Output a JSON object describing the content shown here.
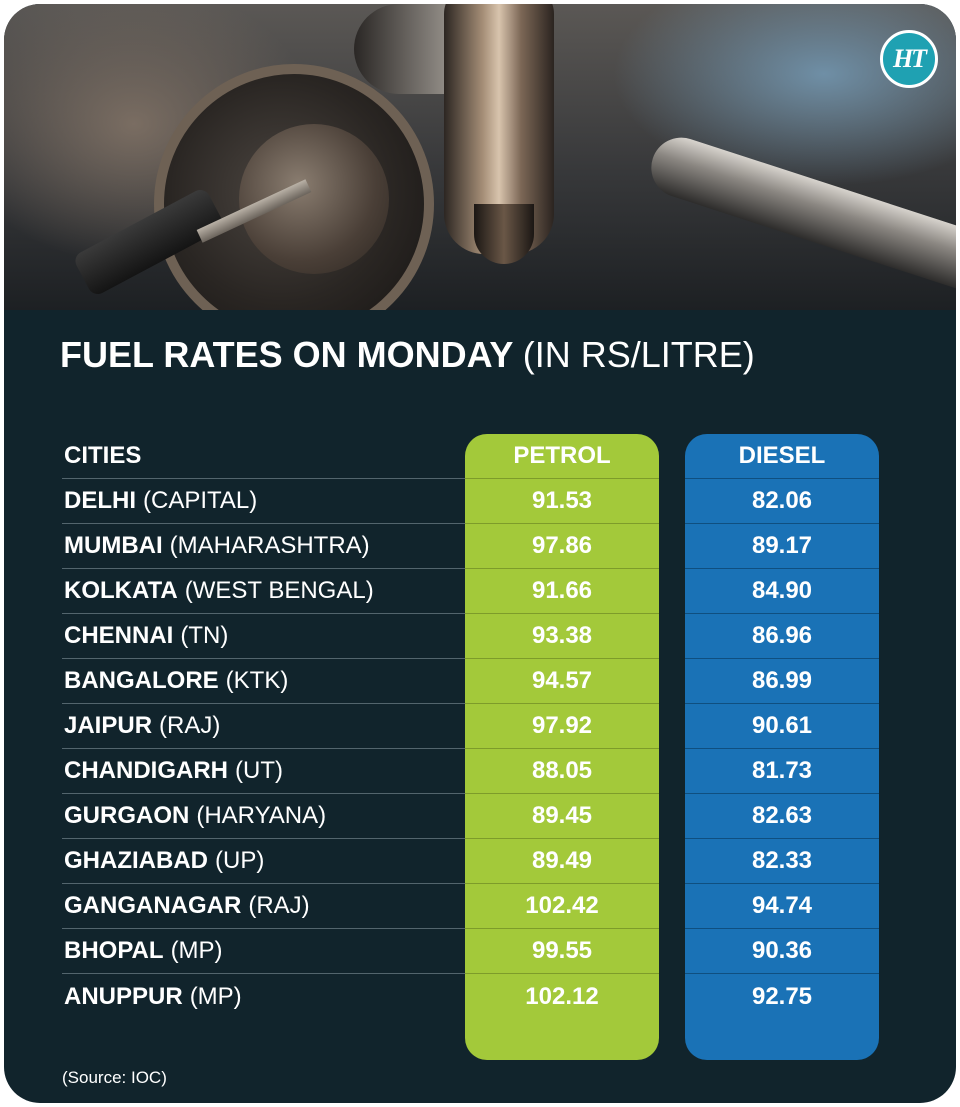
{
  "brand": {
    "logo_text": "HT"
  },
  "title": {
    "bold": "FUEL RATES ON MONDAY",
    "light": "(IN RS/LITRE)"
  },
  "table": {
    "headers": {
      "city": "CITIES",
      "petrol": "PETROL",
      "diesel": "DIESEL"
    },
    "rows": [
      {
        "city": "DELHI",
        "state": "(CAPITAL)",
        "petrol": "91.53",
        "diesel": "82.06"
      },
      {
        "city": "MUMBAI",
        "state": "(MAHARASHTRA)",
        "petrol": "97.86",
        "diesel": "89.17"
      },
      {
        "city": "KOLKATA",
        "state": "(WEST BENGAL)",
        "petrol": "91.66",
        "diesel": "84.90"
      },
      {
        "city": "CHENNAI",
        "state": "(TN)",
        "petrol": "93.38",
        "diesel": "86.96"
      },
      {
        "city": "BANGALORE",
        "state": "(KTK)",
        "petrol": "94.57",
        "diesel": "86.99"
      },
      {
        "city": "JAIPUR",
        "state": "(RAJ)",
        "petrol": "97.92",
        "diesel": "90.61"
      },
      {
        "city": "CHANDIGARH",
        "state": "(UT)",
        "petrol": "88.05",
        "diesel": "81.73"
      },
      {
        "city": "GURGAON",
        "state": "(HARYANA)",
        "petrol": "89.45",
        "diesel": "82.63"
      },
      {
        "city": "GHAZIABAD",
        "state": "(UP)",
        "petrol": "89.49",
        "diesel": "82.33"
      },
      {
        "city": "GANGANAGAR",
        "state": "(RAJ)",
        "petrol": "102.42",
        "diesel": "94.74"
      },
      {
        "city": "BHOPAL",
        "state": "(MP)",
        "petrol": "99.55",
        "diesel": "90.36"
      },
      {
        "city": "ANUPPUR",
        "state": "(MP)",
        "petrol": "102.12",
        "diesel": "92.75"
      }
    ]
  },
  "source": "(Source: IOC)",
  "colors": {
    "background": "#11242c",
    "petrol_column": "#a3c93a",
    "diesel_column": "#1a72b6",
    "logo": "#1fa1b2",
    "text": "#ffffff"
  }
}
